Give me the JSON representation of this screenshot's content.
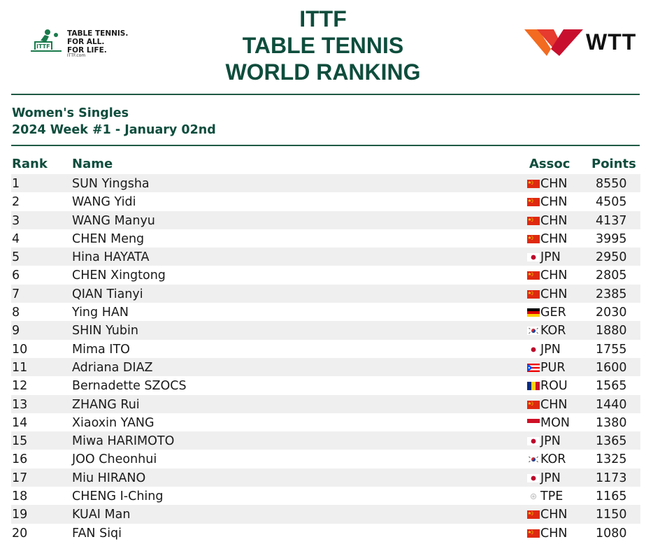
{
  "header": {
    "title_lines": [
      "ITTF",
      "TABLE TENNIS",
      "WORLD RANKING"
    ],
    "ittf_tagline": [
      "TABLE TENNIS.",
      "FOR ALL.",
      "FOR LIFE."
    ],
    "ittf_site": "ITTF.com",
    "wtt_text": "WTT"
  },
  "subheading": {
    "category": "Women's Singles",
    "week": "2024 Week #1 - January 02nd"
  },
  "columns": {
    "rank": "Rank",
    "name": "Name",
    "assoc": "Assoc",
    "points": "Points"
  },
  "colors": {
    "accent": "#0e4d3c",
    "row_stripe": "#efefef"
  },
  "rows": [
    {
      "rank": "1",
      "name": "SUN Yingsha",
      "flag": "cn-flag-icon",
      "assoc": "CHN",
      "points": "8550"
    },
    {
      "rank": "2",
      "name": "WANG Yidi",
      "flag": "cn-flag-icon",
      "assoc": "CHN",
      "points": "4505"
    },
    {
      "rank": "3",
      "name": "WANG Manyu",
      "flag": "cn-flag-icon",
      "assoc": "CHN",
      "points": "4137"
    },
    {
      "rank": "4",
      "name": "CHEN Meng",
      "flag": "cn-flag-icon",
      "assoc": "CHN",
      "points": "3995"
    },
    {
      "rank": "5",
      "name": "Hina HAYATA",
      "flag": "jp-flag-icon",
      "assoc": "JPN",
      "points": "2950"
    },
    {
      "rank": "6",
      "name": "CHEN Xingtong",
      "flag": "cn-flag-icon",
      "assoc": "CHN",
      "points": "2805"
    },
    {
      "rank": "7",
      "name": "QIAN Tianyi",
      "flag": "cn-flag-icon",
      "assoc": "CHN",
      "points": "2385"
    },
    {
      "rank": "8",
      "name": "Ying HAN",
      "flag": "de-flag-icon",
      "assoc": "GER",
      "points": "2030"
    },
    {
      "rank": "9",
      "name": "SHIN Yubin",
      "flag": "kr-flag-icon",
      "assoc": "KOR",
      "points": "1880"
    },
    {
      "rank": "10",
      "name": "Mima ITO",
      "flag": "jp-flag-icon",
      "assoc": "JPN",
      "points": "1755"
    },
    {
      "rank": "11",
      "name": "Adriana DIAZ",
      "flag": "pr-flag-icon",
      "assoc": "PUR",
      "points": "1600"
    },
    {
      "rank": "12",
      "name": "Bernadette SZOCS",
      "flag": "ro-flag-icon",
      "assoc": "ROU",
      "points": "1565"
    },
    {
      "rank": "13",
      "name": "ZHANG Rui",
      "flag": "cn-flag-icon",
      "assoc": "CHN",
      "points": "1440"
    },
    {
      "rank": "14",
      "name": "Xiaoxin YANG",
      "flag": "mc-flag-icon",
      "assoc": "MON",
      "points": "1380"
    },
    {
      "rank": "15",
      "name": "Miwa HARIMOTO",
      "flag": "jp-flag-icon",
      "assoc": "JPN",
      "points": "1365"
    },
    {
      "rank": "16",
      "name": "JOO Cheonhui",
      "flag": "kr-flag-icon",
      "assoc": "KOR",
      "points": "1325"
    },
    {
      "rank": "17",
      "name": "Miu HIRANO",
      "flag": "jp-flag-icon",
      "assoc": "JPN",
      "points": "1173"
    },
    {
      "rank": "18",
      "name": "CHENG I-Ching",
      "flag": "tpe-flag-icon",
      "assoc": "TPE",
      "points": "1165"
    },
    {
      "rank": "19",
      "name": "KUAI Man",
      "flag": "cn-flag-icon",
      "assoc": "CHN",
      "points": "1150"
    },
    {
      "rank": "20",
      "name": "FAN Siqi",
      "flag": "cn-flag-icon",
      "assoc": "CHN",
      "points": "1080"
    }
  ]
}
